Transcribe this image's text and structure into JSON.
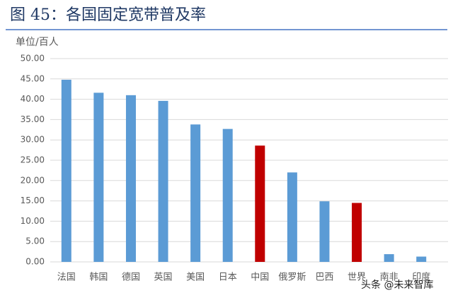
{
  "chart_data": {
    "type": "bar",
    "title": "图 45：各国固定宽带普及率",
    "y_label": "单位/百人",
    "watermark": "头条 @未来智库",
    "categories": [
      "法国",
      "韩国",
      "德国",
      "英国",
      "美国",
      "日本",
      "中国",
      "俄罗斯",
      "巴西",
      "世界",
      "南非",
      "印度"
    ],
    "values": [
      44.8,
      41.6,
      41.0,
      39.6,
      33.8,
      32.7,
      28.6,
      22.0,
      14.9,
      14.5,
      1.9,
      1.3
    ],
    "colors": [
      "#5b9bd5",
      "#5b9bd5",
      "#5b9bd5",
      "#5b9bd5",
      "#5b9bd5",
      "#5b9bd5",
      "#c00000",
      "#5b9bd5",
      "#5b9bd5",
      "#c00000",
      "#5b9bd5",
      "#5b9bd5"
    ],
    "ylim": [
      0,
      50
    ],
    "yticks": [
      {
        "value": 0,
        "label": "0.00"
      },
      {
        "value": 5,
        "label": "5.00"
      },
      {
        "value": 10,
        "label": "10.00"
      },
      {
        "value": 15,
        "label": "15.00"
      },
      {
        "value": 20,
        "label": "20.00"
      },
      {
        "value": 25,
        "label": "25.00"
      },
      {
        "value": 30,
        "label": "30.00"
      },
      {
        "value": 35,
        "label": "35.00"
      },
      {
        "value": 40,
        "label": "40.00"
      },
      {
        "value": 45,
        "label": "45.00"
      },
      {
        "value": 50,
        "label": "50.00"
      }
    ],
    "grid": true
  }
}
